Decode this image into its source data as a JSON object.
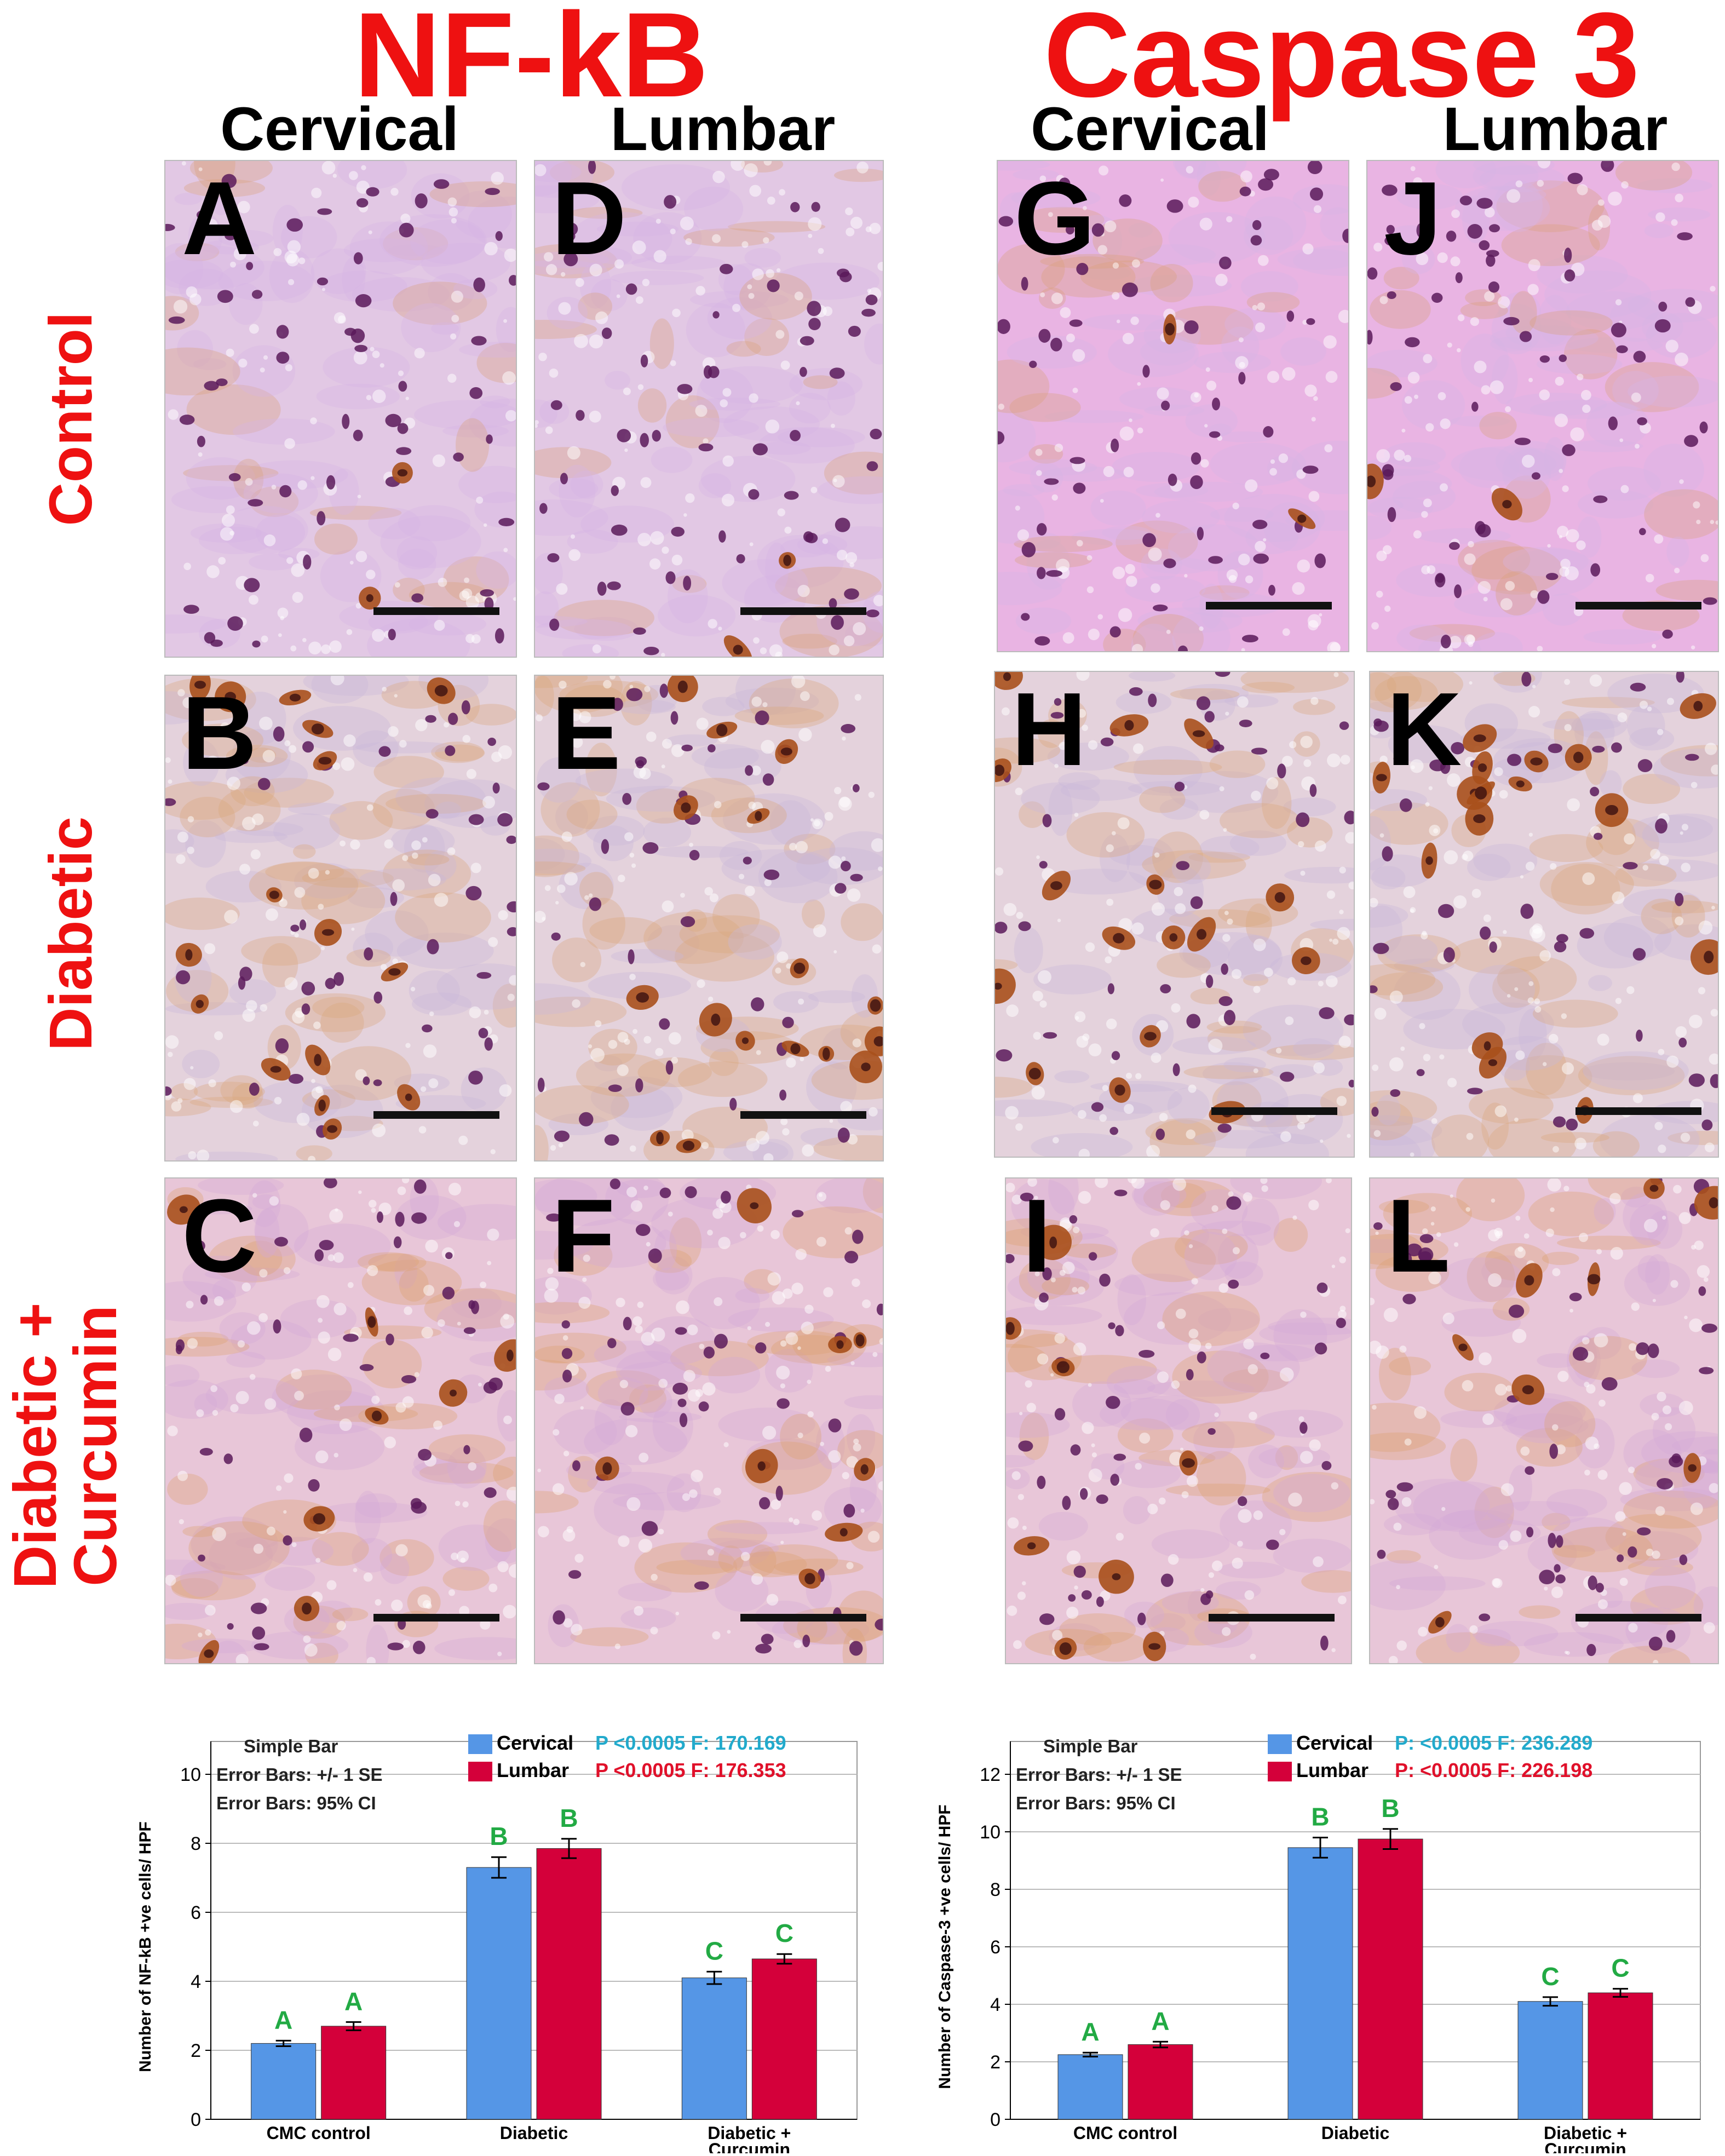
{
  "titles": {
    "left": "NF-kB",
    "right": "Caspase 3"
  },
  "column_headers": [
    "Cervical",
    "Lumbar",
    "Cervical",
    "Lumbar"
  ],
  "row_labels": {
    "control": "Control",
    "diabetic": "Diabetic",
    "diabetic_curcumin_line1": "Diabetic +",
    "diabetic_curcumin_line2": "Curcumin"
  },
  "panel_letters": [
    "A",
    "B",
    "C",
    "D",
    "E",
    "F",
    "G",
    "H",
    "I",
    "J",
    "K",
    "L"
  ],
  "colors": {
    "title_red": "#ee1111",
    "cervical": "#5596e6",
    "lumbar": "#d4003a",
    "letter_green": "#22aa44",
    "stain_pink": "#e3b6db",
    "stain_nucleus": "#5a1a5a",
    "stain_brown": "#a8501c"
  },
  "chart_data": [
    {
      "type": "bar",
      "categories": [
        "CMC control",
        "Diabetic",
        "Diabetic +\nCurcumin"
      ],
      "category_lines": [
        [
          "CMC control"
        ],
        [
          "Diabetic"
        ],
        [
          "Diabetic +",
          "Curcumin"
        ]
      ],
      "series": [
        {
          "name": "Cervical",
          "values": [
            2.2,
            7.3,
            4.1
          ],
          "se": [
            0.08,
            0.3,
            0.18
          ],
          "letters": [
            "A",
            "B",
            "C"
          ]
        },
        {
          "name": "Lumbar",
          "values": [
            2.7,
            7.85,
            4.65
          ],
          "se": [
            0.12,
            0.28,
            0.14
          ],
          "letters": [
            "A",
            "B",
            "C"
          ]
        }
      ],
      "ylabel": "Number of NF-kB +ve cells/ HPF",
      "ylim": [
        0,
        10
      ],
      "yticks": [
        0,
        2,
        4,
        6,
        8,
        10
      ],
      "annotations": [
        "Simple Bar",
        "Error Bars: +/- 1 SE",
        "Error Bars: 95% CI"
      ],
      "stats": [
        {
          "series": "Cervical",
          "text": "P <0.0005 F: 170.169",
          "color": "#22aacc"
        },
        {
          "series": "Lumbar",
          "text": "P <0.0005 F: 176.353",
          "color": "#e0102a"
        }
      ],
      "grid": true,
      "legend_position": "top-right"
    },
    {
      "type": "bar",
      "categories": [
        "CMC control",
        "Diabetic",
        "Diabetic +\nCurcumin"
      ],
      "category_lines": [
        [
          "CMC control"
        ],
        [
          "Diabetic"
        ],
        [
          "Diabetic +",
          "Curcumin"
        ]
      ],
      "series": [
        {
          "name": "Cervical",
          "values": [
            2.25,
            9.45,
            4.1
          ],
          "se": [
            0.07,
            0.35,
            0.15
          ],
          "letters": [
            "A",
            "B",
            "C"
          ]
        },
        {
          "name": "Lumbar",
          "values": [
            2.6,
            9.75,
            4.4
          ],
          "se": [
            0.1,
            0.35,
            0.14
          ],
          "letters": [
            "A",
            "B",
            "C"
          ]
        }
      ],
      "ylabel": "Number of Caspase-3 +ve cells/ HPF",
      "ylim": [
        0,
        12
      ],
      "yticks": [
        0,
        2,
        4,
        6,
        8,
        10,
        12
      ],
      "annotations": [
        "Simple Bar",
        "Error Bars: +/- 1 SE",
        "Error Bars: 95% CI"
      ],
      "stats": [
        {
          "series": "Cervical",
          "text": "P: <0.0005  F: 236.289",
          "color": "#22aacc"
        },
        {
          "series": "Lumbar",
          "text": "P: <0.0005  F: 226.198",
          "color": "#e0102a"
        }
      ],
      "grid": true,
      "legend_position": "top-right"
    }
  ]
}
